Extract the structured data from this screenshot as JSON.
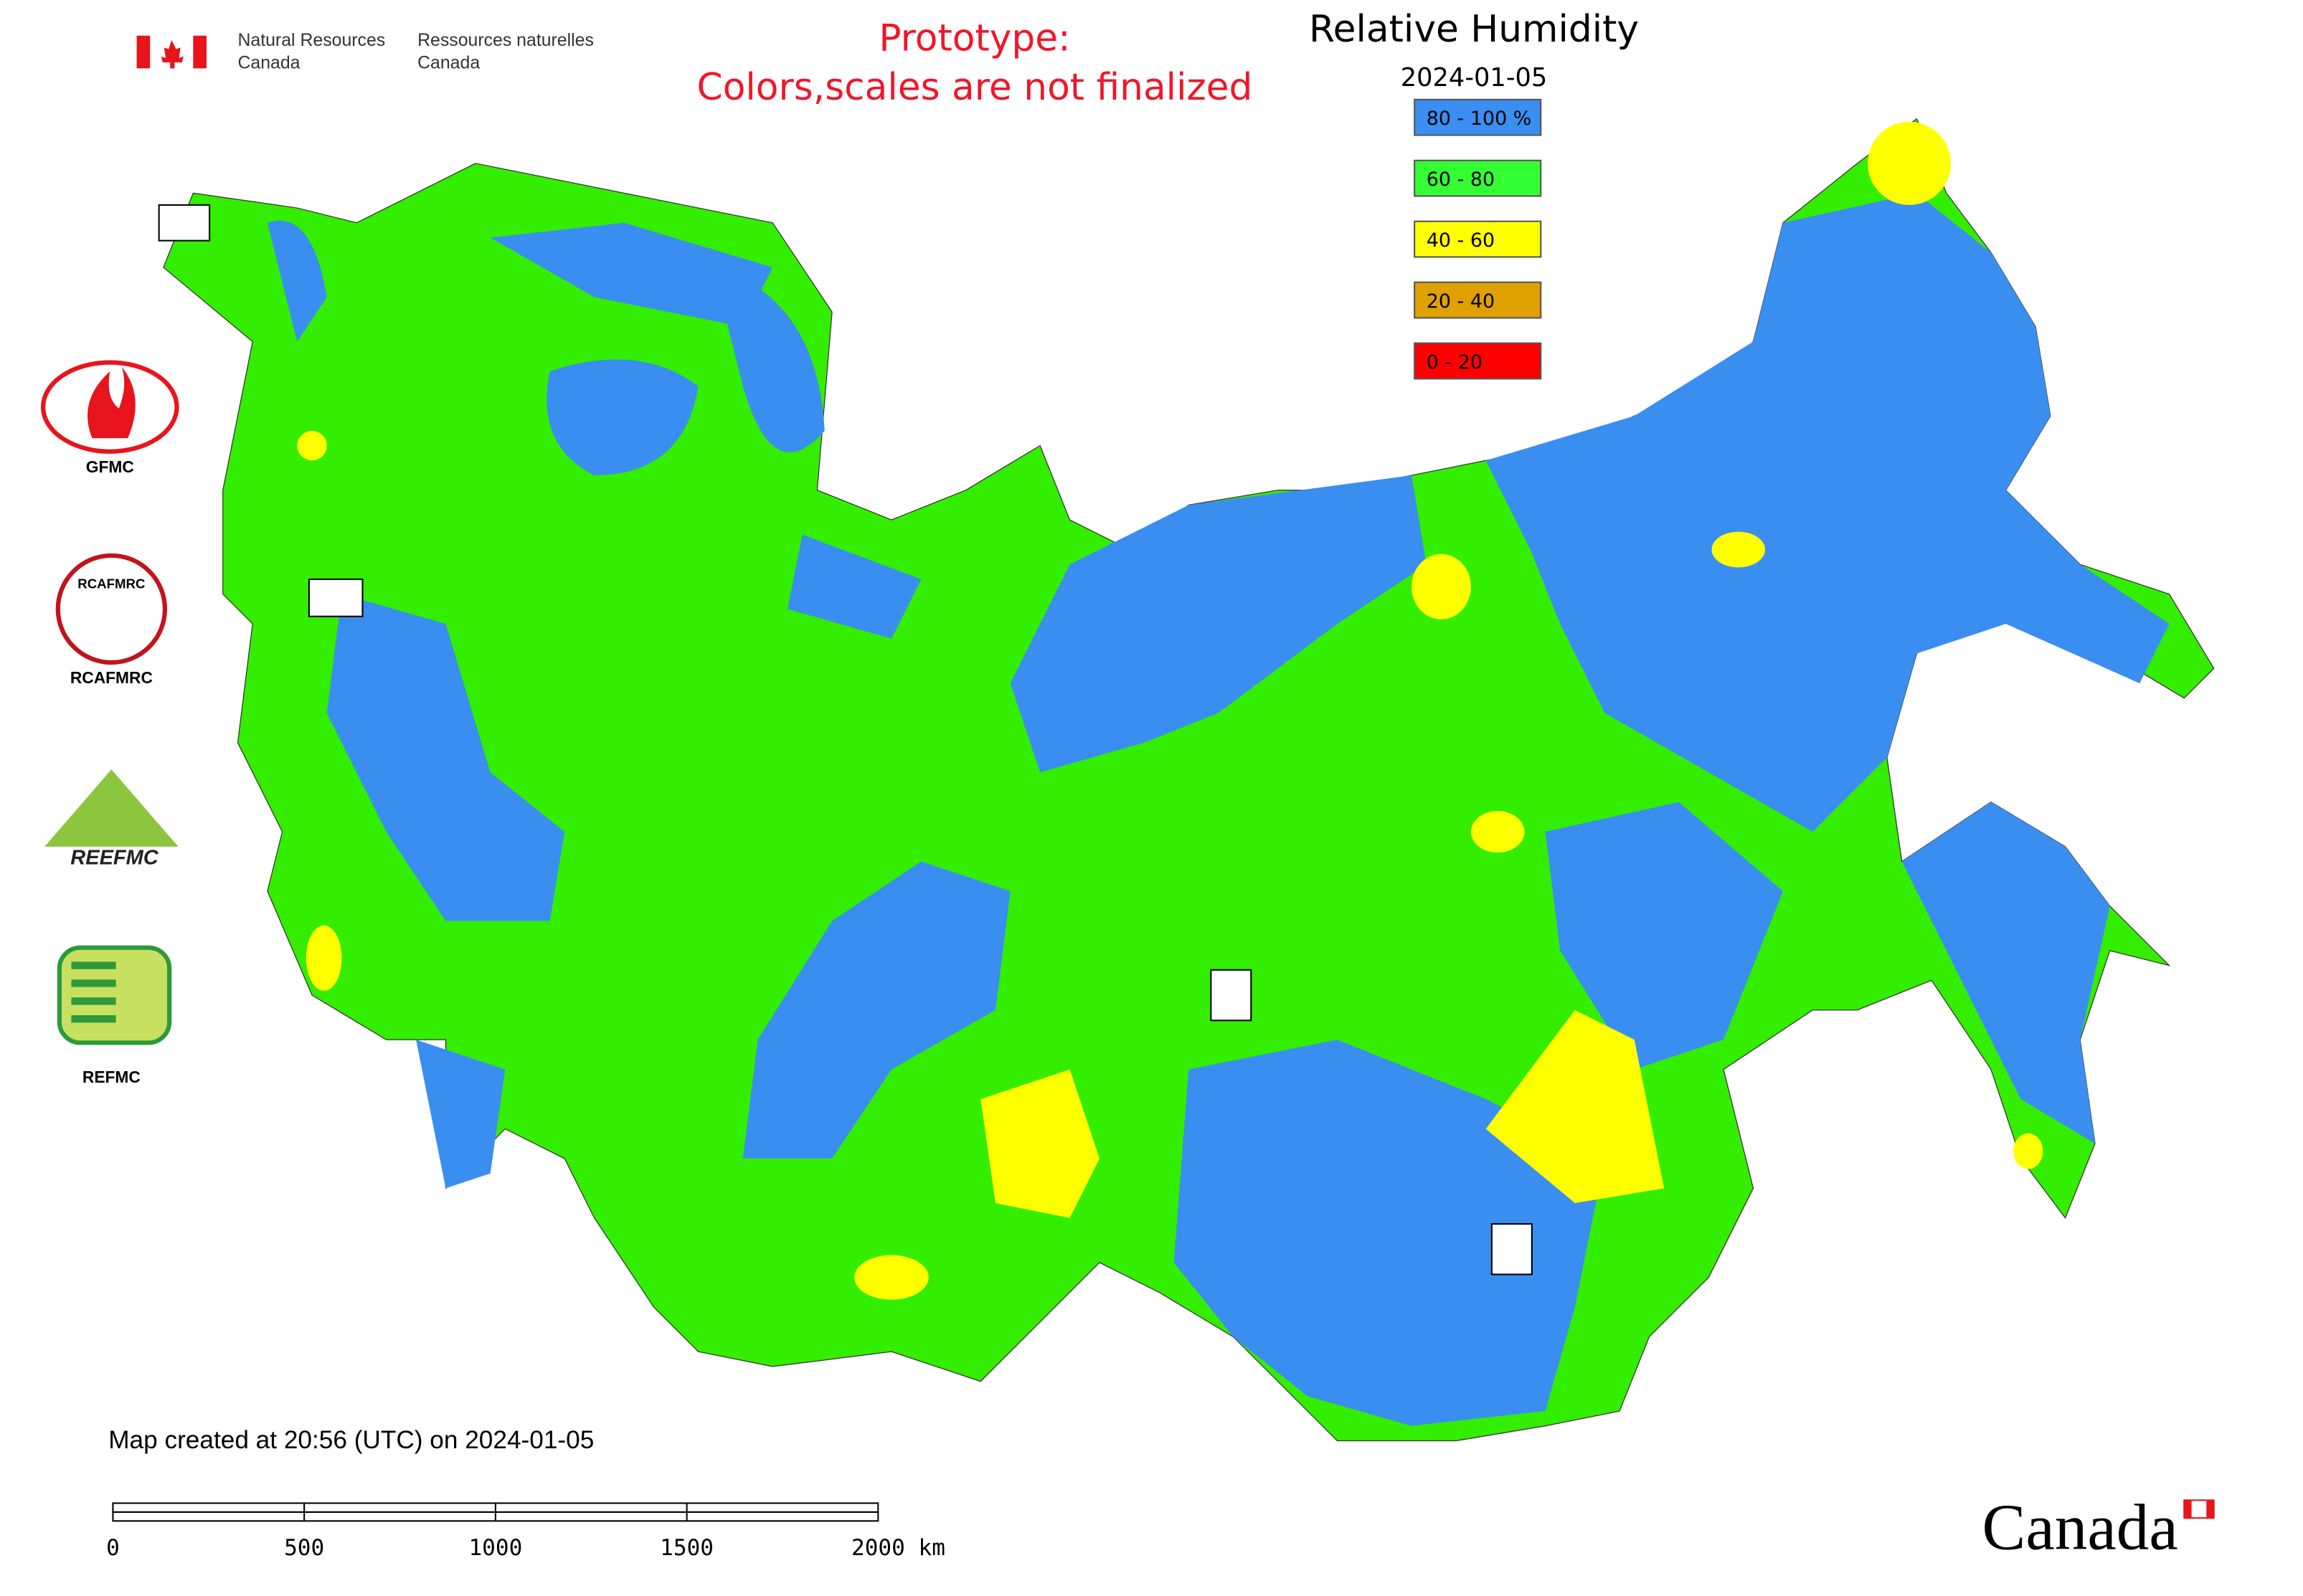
{
  "header": {
    "agency_en_line1": "Natural Resources",
    "agency_en_line2": "Canada",
    "agency_fr_line1": "Ressources naturelles",
    "agency_fr_line2": "Canada",
    "notice_line1": "Prototype:",
    "notice_line2": "Colors,scales are not finalized"
  },
  "legend": {
    "title": "Relative Humidity",
    "date": "2024-01-05",
    "items": [
      {
        "label": "80 - 100 %",
        "color": "#3a8ef0"
      },
      {
        "label": "60 - 80",
        "color": "#33ff33"
      },
      {
        "label": "40 - 60",
        "color": "#ffff00"
      },
      {
        "label": "20 - 40",
        "color": "#e0a000"
      },
      {
        "label": "0 - 20",
        "color": "#ff0000"
      }
    ]
  },
  "logos": {
    "gfmc": "GFMC",
    "rcafmrc_badge": "RCAFMRC",
    "rcafmrc": "RCAFMRC",
    "reefmc_badge": "REEFMC",
    "refmc": "REFMC"
  },
  "footer": {
    "created": "Map created at 20:56 (UTC) on 2024-01-05",
    "scale_labels": [
      "0",
      "500",
      "1000",
      "1500",
      "2000 km"
    ],
    "wordmark": "Canada"
  }
}
